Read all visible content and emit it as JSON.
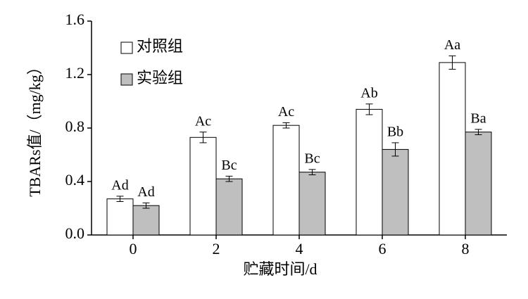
{
  "chart_data": {
    "type": "bar",
    "y_label": "TBARs值/（mg/kg）",
    "x_label": "贮藏时间/d",
    "categories": [
      "0",
      "2",
      "4",
      "6",
      "8"
    ],
    "series": [
      {
        "name": "对照组",
        "color": "#ffffff",
        "values": [
          0.27,
          0.73,
          0.82,
          0.94,
          1.29
        ],
        "errors": [
          0.02,
          0.04,
          0.02,
          0.04,
          0.05
        ],
        "labels": [
          "Ad",
          "Ac",
          "Ac",
          "Ab",
          "Aa"
        ]
      },
      {
        "name": "实验组",
        "color": "#bfbfbf",
        "values": [
          0.22,
          0.42,
          0.47,
          0.64,
          0.77
        ],
        "errors": [
          0.02,
          0.02,
          0.02,
          0.05,
          0.02
        ],
        "labels": [
          "Ad",
          "Bc",
          "Bc",
          "Bb",
          "Ba"
        ]
      }
    ],
    "ylim": [
      0,
      1.6
    ],
    "yticks": [
      {
        "value": 0,
        "label": "0.0"
      },
      0.4,
      0.8,
      1.2,
      1.6
    ],
    "legend": "upper left"
  }
}
